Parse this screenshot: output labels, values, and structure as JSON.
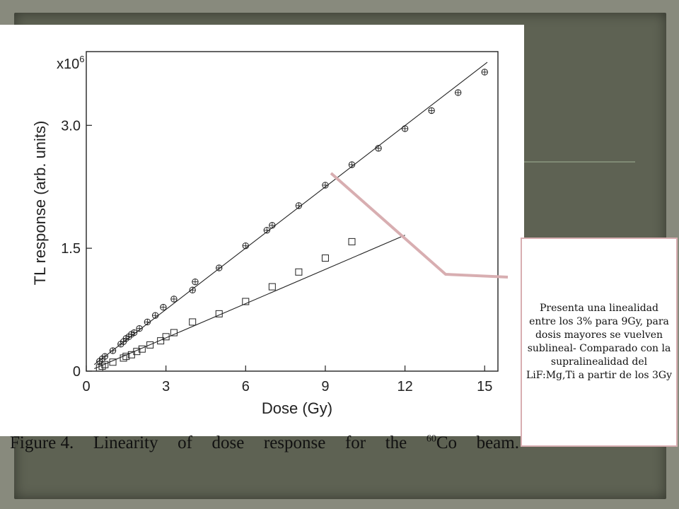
{
  "caption": {
    "prefix": "Figure 4.",
    "word1": "Linearity",
    "word2": "of",
    "word3": "dose",
    "word4": "response",
    "word5": "for",
    "word6": "the",
    "isotope_mass": "60",
    "isotope_symbol": "Co",
    "word7": "beam."
  },
  "callout": {
    "text": "Presenta una linealidad entre los 3% para 9Gy, para dosis mayores se vuelven sublineal- Comparado con la supralinealidad del LiF:Mg,Ti a partir de los 3Gy"
  },
  "colors": {
    "callout_border": "#d8aeb1",
    "pointer_line": "#d8aeb1",
    "background": "#5e6253"
  },
  "chart_data": {
    "type": "scatter",
    "xlabel": "Dose (Gy)",
    "ylabel": "TL response (arb. units)",
    "y_multiplier_label": "x10",
    "y_multiplier_exp": "6",
    "xlim": [
      0,
      15.5
    ],
    "ylim": [
      0,
      3.9
    ],
    "xticks": [
      0,
      3,
      6,
      9,
      12,
      15
    ],
    "yticks": [
      0,
      1.5,
      3.0
    ],
    "ytick_labels": [
      "0",
      "1.5",
      "3.0"
    ],
    "xtick_labels": [
      "0",
      "3",
      "6",
      "9",
      "12",
      "15"
    ],
    "grid": false,
    "series": [
      {
        "marker": "circle-cross",
        "x": [
          0.5,
          0.6,
          0.7,
          1.0,
          1.3,
          1.4,
          1.5,
          1.6,
          1.7,
          1.8,
          2.0,
          2.3,
          2.6,
          2.9,
          3.3,
          4.0,
          4.1,
          5.0,
          6.0,
          6.8,
          7.0,
          8.0,
          9.0,
          10.0,
          11.0,
          12.0,
          13.0,
          14.0,
          15.0
        ],
        "y": [
          0.12,
          0.15,
          0.18,
          0.25,
          0.33,
          0.36,
          0.4,
          0.42,
          0.45,
          0.47,
          0.52,
          0.6,
          0.68,
          0.78,
          0.88,
          0.99,
          1.09,
          1.26,
          1.53,
          1.72,
          1.78,
          2.02,
          2.27,
          2.52,
          2.72,
          2.96,
          3.18,
          3.4,
          3.65
        ]
      },
      {
        "marker": "square",
        "x": [
          0.5,
          0.6,
          0.7,
          1.0,
          1.4,
          1.5,
          1.7,
          1.9,
          2.1,
          2.4,
          2.8,
          3.0,
          3.3,
          4.0,
          5.0,
          6.0,
          7.0,
          8.0,
          9.0,
          10.0
        ],
        "y": [
          0.04,
          0.06,
          0.08,
          0.11,
          0.16,
          0.18,
          0.2,
          0.24,
          0.27,
          0.32,
          0.37,
          0.42,
          0.47,
          0.6,
          0.7,
          0.85,
          1.03,
          1.21,
          1.38,
          1.58
        ]
      }
    ],
    "fit_lines": [
      {
        "x": [
          0.3,
          15.1
        ],
        "y": [
          0.08,
          3.77
        ]
      },
      {
        "x": [
          0.3,
          12.0
        ],
        "y": [
          0.03,
          1.66
        ]
      }
    ]
  }
}
